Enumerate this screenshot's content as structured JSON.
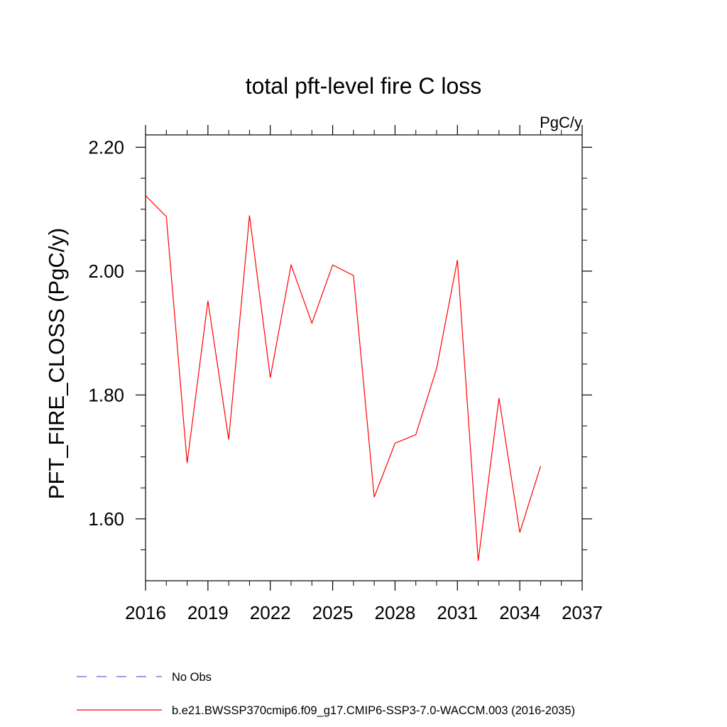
{
  "chart_data": {
    "type": "line",
    "title": "total pft-level fire C loss",
    "units": "PgC/y",
    "ylabel": "PFT_FIRE_CLOSS  (PgC/y)",
    "xlabel": "",
    "xlim": [
      2016,
      2037
    ],
    "ylim": [
      1.5,
      2.22
    ],
    "xticks": [
      2016,
      2019,
      2022,
      2025,
      2028,
      2031,
      2034,
      2037
    ],
    "yticks": [
      {
        "value": 2.2,
        "label": "2.20"
      },
      {
        "value": 2.0,
        "label": "2.00"
      },
      {
        "value": 1.8,
        "label": "1.80"
      },
      {
        "value": 1.6,
        "label": "1.60"
      }
    ],
    "x_minor_ticks": [
      2017,
      2018,
      2020,
      2021,
      2023,
      2024,
      2026,
      2027,
      2029,
      2030,
      2032,
      2033,
      2035,
      2036
    ],
    "y_minor_ticks": [
      1.55,
      1.65,
      1.7,
      1.75,
      1.85,
      1.9,
      1.95,
      2.05,
      2.1,
      2.15
    ],
    "series": [
      {
        "name": "b.e21.BWSSP370cmip6.f09_g17.CMIP6-SSP3-7.0-WACCM.003 (2016-2035)",
        "color": "#ff0000",
        "style": "solid",
        "x": [
          2016,
          2017,
          2018,
          2019,
          2020,
          2021,
          2022,
          2023,
          2024,
          2025,
          2026,
          2027,
          2028,
          2029,
          2030,
          2031,
          2032,
          2033,
          2034,
          2035
        ],
        "values": [
          2.122,
          2.088,
          1.69,
          1.952,
          1.728,
          2.09,
          1.828,
          2.01,
          1.916,
          2.01,
          1.993,
          1.635,
          1.722,
          1.736,
          1.843,
          2.018,
          1.532,
          1.795,
          1.578,
          1.685
        ]
      }
    ],
    "legend": {
      "placement": "bottom",
      "entries": [
        {
          "label": "No Obs",
          "color": "#6a5acd",
          "style": "dashed"
        },
        {
          "label": "b.e21.BWSSP370cmip6.f09_g17.CMIP6-SSP3-7.0-WACCM.003 (2016-2035)",
          "color": "#ff0000",
          "style": "solid"
        }
      ]
    }
  }
}
